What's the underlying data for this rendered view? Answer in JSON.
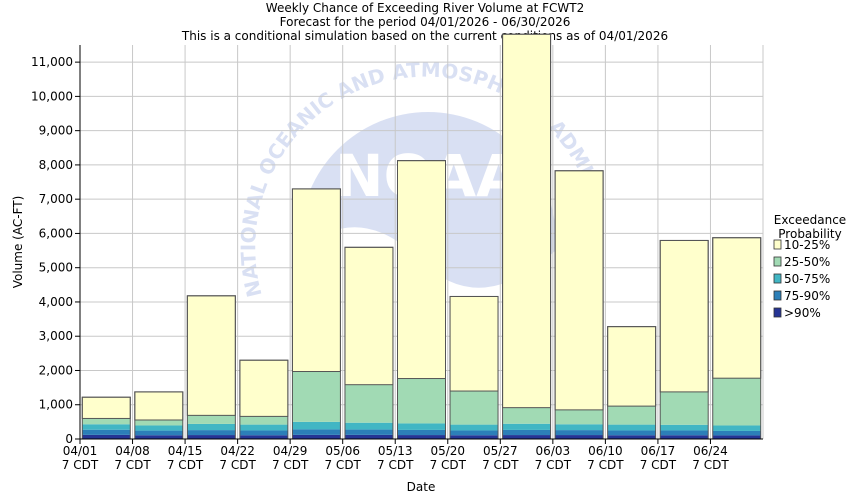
{
  "chart_data": {
    "type": "bar",
    "stacked": true,
    "title": [
      "Weekly Chance of Exceeding River Volume at FCWT2",
      "Forecast for the period 04/01/2026 - 06/30/2026",
      "This is a conditional simulation based on the current conditions as of 04/01/2026"
    ],
    "xlabel": "Date",
    "ylabel": "Volume (AC-FT)",
    "ylim": [
      0,
      11500
    ],
    "yticks": [
      0,
      1000,
      2000,
      3000,
      4000,
      5000,
      6000,
      7000,
      8000,
      9000,
      10000,
      11000
    ],
    "ytick_labels": [
      "0",
      "1,000",
      "2,000",
      "3,000",
      "4,000",
      "5,000",
      "6,000",
      "7,000",
      "8,000",
      "9,000",
      "10,000",
      "11,000"
    ],
    "xtick_labels": [
      [
        "04/01",
        "7 CDT"
      ],
      [
        "04/08",
        "7 CDT"
      ],
      [
        "04/15",
        "7 CDT"
      ],
      [
        "04/22",
        "7 CDT"
      ],
      [
        "04/29",
        "7 CDT"
      ],
      [
        "05/06",
        "7 CDT"
      ],
      [
        "05/13",
        "7 CDT"
      ],
      [
        "05/20",
        "7 CDT"
      ],
      [
        "05/27",
        "7 CDT"
      ],
      [
        "06/03",
        "7 CDT"
      ],
      [
        "06/10",
        "7 CDT"
      ],
      [
        "06/17",
        "7 CDT"
      ],
      [
        "06/24",
        "7 CDT"
      ]
    ],
    "grid": true,
    "legend_title": [
      "Exceedance",
      "Probability"
    ],
    "legend_position": "right",
    "series": [
      {
        "name": "10-25%",
        "color": "#ffffcc",
        "values": [
          620,
          820,
          3490,
          1640,
          5330,
          4010,
          6360,
          2760,
          10900,
          6980,
          2320,
          4420,
          4100
        ]
      },
      {
        "name": "25-50%",
        "color": "#a1dab4",
        "values": [
          170,
          160,
          250,
          240,
          1470,
          1110,
          1310,
          980,
          470,
          420,
          540,
          960,
          1380
        ]
      },
      {
        "name": "50-75%",
        "color": "#41b6c4",
        "values": [
          160,
          150,
          180,
          170,
          220,
          200,
          190,
          170,
          180,
          170,
          170,
          165,
          160
        ]
      },
      {
        "name": "75-90%",
        "color": "#2c7fb8",
        "values": [
          150,
          135,
          145,
          140,
          160,
          155,
          150,
          140,
          150,
          145,
          140,
          140,
          130
        ]
      },
      {
        "name": ">90%",
        "color": "#253494",
        "values": [
          120,
          110,
          115,
          110,
          120,
          120,
          115,
          110,
          115,
          115,
          110,
          110,
          105
        ]
      }
    ]
  },
  "watermark": "NATIONAL OCEANIC AND ATMOSPHERIC ADMINISTRATION"
}
